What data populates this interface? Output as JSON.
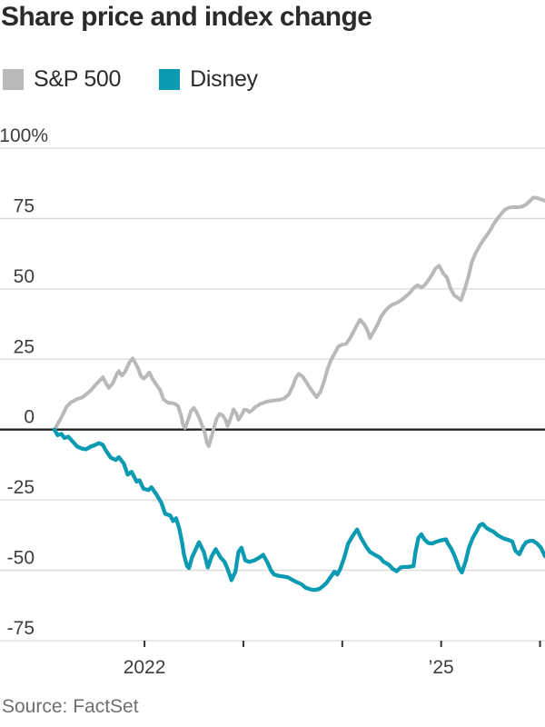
{
  "title": "Share price and index change",
  "source": "Source: FactSet",
  "colors": {
    "zero_line": "#222222",
    "gridline": "#d9d9d9",
    "axis_tick": "#333333",
    "sp500": "#b9b9b9",
    "disney": "#0a9ab1"
  },
  "chart_data": {
    "type": "line",
    "title": "Share price and index change",
    "legend_position": "top-left",
    "grid": true,
    "y_axis": {
      "unit": "%",
      "domain": [
        -75,
        100
      ],
      "ticks": [
        {
          "v": 100,
          "label": "100%"
        },
        {
          "v": 75,
          "label": "75"
        },
        {
          "v": 50,
          "label": "50"
        },
        {
          "v": 25,
          "label": "25"
        },
        {
          "v": 0,
          "label": "0"
        },
        {
          "v": -25,
          "label": "-25"
        },
        {
          "v": -50,
          "label": "-50"
        },
        {
          "v": -75,
          "label": "-75"
        }
      ]
    },
    "x_axis": {
      "unit": "year",
      "domain": [
        2021.09,
        2026.05
      ],
      "ticks": [
        {
          "t": 2022,
          "label": "2022"
        },
        {
          "t": 2023,
          "label": ""
        },
        {
          "t": 2024,
          "label": ""
        },
        {
          "t": 2025,
          "label": "’25"
        },
        {
          "t": 2026,
          "label": ""
        }
      ]
    },
    "series": [
      {
        "name": "S&P 500",
        "color": "#b9b9b9",
        "width": 4,
        "points": [
          [
            2021.09,
            0
          ],
          [
            2021.13,
            2.5
          ],
          [
            2021.17,
            5
          ],
          [
            2021.21,
            8
          ],
          [
            2021.26,
            9.8
          ],
          [
            2021.29,
            10.3
          ],
          [
            2021.32,
            10.9
          ],
          [
            2021.37,
            11.4
          ],
          [
            2021.41,
            12.5
          ],
          [
            2021.46,
            14
          ],
          [
            2021.5,
            15.7
          ],
          [
            2021.55,
            17.5
          ],
          [
            2021.58,
            18.6
          ],
          [
            2021.61,
            16.5
          ],
          [
            2021.64,
            14.8
          ],
          [
            2021.68,
            16.5
          ],
          [
            2021.72,
            19.7
          ],
          [
            2021.74,
            20.8
          ],
          [
            2021.77,
            19.2
          ],
          [
            2021.8,
            20.3
          ],
          [
            2021.83,
            22.5
          ],
          [
            2021.85,
            24
          ],
          [
            2021.88,
            25.3
          ],
          [
            2021.91,
            23.5
          ],
          [
            2021.94,
            21.4
          ],
          [
            2021.96,
            19.2
          ],
          [
            2021.99,
            18.1
          ],
          [
            2022.02,
            19
          ],
          [
            2022.05,
            20.3
          ],
          [
            2022.08,
            18
          ],
          [
            2022.12,
            16
          ],
          [
            2022.16,
            14
          ],
          [
            2022.19,
            10.8
          ],
          [
            2022.24,
            9.5
          ],
          [
            2022.28,
            9.4
          ],
          [
            2022.31,
            9.1
          ],
          [
            2022.34,
            8.3
          ],
          [
            2022.37,
            5
          ],
          [
            2022.39,
            1.7
          ],
          [
            2022.41,
            0.6
          ],
          [
            2022.44,
            3.3
          ],
          [
            2022.47,
            6.6
          ],
          [
            2022.5,
            7.7
          ],
          [
            2022.52,
            6.6
          ],
          [
            2022.55,
            4.4
          ],
          [
            2022.58,
            1.7
          ],
          [
            2022.61,
            -1.1
          ],
          [
            2022.63,
            -4.5
          ],
          [
            2022.65,
            -5.9
          ],
          [
            2022.68,
            -2.2
          ],
          [
            2022.71,
            1.7
          ],
          [
            2022.73,
            3.9
          ],
          [
            2022.76,
            5.6
          ],
          [
            2022.79,
            5.1
          ],
          [
            2022.82,
            3.5
          ],
          [
            2022.84,
            1.3
          ],
          [
            2022.87,
            3.9
          ],
          [
            2022.9,
            7.2
          ],
          [
            2022.93,
            5.6
          ],
          [
            2022.95,
            3.5
          ],
          [
            2022.98,
            5.1
          ],
          [
            2023.01,
            7.1
          ],
          [
            2023.04,
            6.9
          ],
          [
            2023.06,
            6.2
          ],
          [
            2023.09,
            6.9
          ],
          [
            2023.12,
            8
          ],
          [
            2023.15,
            8.6
          ],
          [
            2023.17,
            9.1
          ],
          [
            2023.2,
            9.4
          ],
          [
            2023.23,
            9.9
          ],
          [
            2023.28,
            10.2
          ],
          [
            2023.32,
            10.4
          ],
          [
            2023.37,
            10.6
          ],
          [
            2023.41,
            11
          ],
          [
            2023.46,
            12.5
          ],
          [
            2023.5,
            15.5
          ],
          [
            2023.53,
            18.3
          ],
          [
            2023.56,
            19.8
          ],
          [
            2023.6,
            18.8
          ],
          [
            2023.63,
            17.2
          ],
          [
            2023.67,
            15
          ],
          [
            2023.71,
            13
          ],
          [
            2023.74,
            11.5
          ],
          [
            2023.78,
            13.5
          ],
          [
            2023.82,
            17.5
          ],
          [
            2023.85,
            21.5
          ],
          [
            2023.89,
            25
          ],
          [
            2023.93,
            27.5
          ],
          [
            2023.96,
            29.5
          ],
          [
            2024.0,
            30.2
          ],
          [
            2024.04,
            30.5
          ],
          [
            2024.07,
            32
          ],
          [
            2024.11,
            34.5
          ],
          [
            2024.15,
            37.2
          ],
          [
            2024.18,
            39
          ],
          [
            2024.22,
            37.5
          ],
          [
            2024.26,
            34.8
          ],
          [
            2024.28,
            32.5
          ],
          [
            2024.32,
            35
          ],
          [
            2024.36,
            37.5
          ],
          [
            2024.39,
            40
          ],
          [
            2024.43,
            42
          ],
          [
            2024.47,
            43.5
          ],
          [
            2024.5,
            44.3
          ],
          [
            2024.55,
            45
          ],
          [
            2024.6,
            46
          ],
          [
            2024.64,
            47.2
          ],
          [
            2024.69,
            48.8
          ],
          [
            2024.72,
            50.2
          ],
          [
            2024.76,
            51.3
          ],
          [
            2024.8,
            50.5
          ],
          [
            2024.83,
            51.2
          ],
          [
            2024.87,
            53
          ],
          [
            2024.91,
            55.2
          ],
          [
            2024.94,
            57.2
          ],
          [
            2024.98,
            58.2
          ],
          [
            2025.02,
            55.5
          ],
          [
            2025.06,
            54
          ],
          [
            2025.09,
            50.5
          ],
          [
            2025.13,
            47.8
          ],
          [
            2025.17,
            46.8
          ],
          [
            2025.2,
            46
          ],
          [
            2025.24,
            50
          ],
          [
            2025.28,
            55
          ],
          [
            2025.31,
            59.5
          ],
          [
            2025.35,
            62.8
          ],
          [
            2025.39,
            65.3
          ],
          [
            2025.42,
            67
          ],
          [
            2025.46,
            69
          ],
          [
            2025.5,
            71
          ],
          [
            2025.53,
            73
          ],
          [
            2025.57,
            75
          ],
          [
            2025.61,
            76.8
          ],
          [
            2025.64,
            78
          ],
          [
            2025.68,
            78.8
          ],
          [
            2025.72,
            79
          ],
          [
            2025.77,
            79
          ],
          [
            2025.82,
            79.2
          ],
          [
            2025.86,
            80
          ],
          [
            2025.9,
            81.3
          ],
          [
            2025.93,
            82.4
          ],
          [
            2025.97,
            82.3
          ],
          [
            2026.01,
            81.8
          ],
          [
            2026.05,
            81.3
          ]
        ]
      },
      {
        "name": "Disney",
        "color": "#0a9ab1",
        "width": 4.3,
        "points": [
          [
            2021.09,
            0
          ],
          [
            2021.12,
            -2
          ],
          [
            2021.16,
            -1.5
          ],
          [
            2021.19,
            -3
          ],
          [
            2021.23,
            -2.5
          ],
          [
            2021.28,
            -4.5
          ],
          [
            2021.32,
            -6
          ],
          [
            2021.37,
            -6.8
          ],
          [
            2021.41,
            -7
          ],
          [
            2021.46,
            -6
          ],
          [
            2021.5,
            -5.5
          ],
          [
            2021.54,
            -4.8
          ],
          [
            2021.58,
            -5.5
          ],
          [
            2021.61,
            -7.5
          ],
          [
            2021.66,
            -10
          ],
          [
            2021.71,
            -10.8
          ],
          [
            2021.74,
            -9.8
          ],
          [
            2021.79,
            -12
          ],
          [
            2021.83,
            -16
          ],
          [
            2021.87,
            -15
          ],
          [
            2021.92,
            -18.5
          ],
          [
            2021.95,
            -18
          ],
          [
            2021.99,
            -21
          ],
          [
            2022.04,
            -21.5
          ],
          [
            2022.07,
            -20.5
          ],
          [
            2022.12,
            -23
          ],
          [
            2022.17,
            -26
          ],
          [
            2022.21,
            -30
          ],
          [
            2022.26,
            -30.5
          ],
          [
            2022.29,
            -32.5
          ],
          [
            2022.32,
            -31.5
          ],
          [
            2022.35,
            -35
          ],
          [
            2022.38,
            -40
          ],
          [
            2022.4,
            -44.5
          ],
          [
            2022.43,
            -48.5
          ],
          [
            2022.45,
            -49.2
          ],
          [
            2022.48,
            -45.5
          ],
          [
            2022.51,
            -43.2
          ],
          [
            2022.55,
            -40
          ],
          [
            2022.6,
            -43.5
          ],
          [
            2022.64,
            -49
          ],
          [
            2022.68,
            -45
          ],
          [
            2022.72,
            -42.5
          ],
          [
            2022.77,
            -45.5
          ],
          [
            2022.81,
            -47
          ],
          [
            2022.84,
            -49.5
          ],
          [
            2022.88,
            -53.5
          ],
          [
            2022.92,
            -50.5
          ],
          [
            2022.95,
            -43.5
          ],
          [
            2022.98,
            -42
          ],
          [
            2023.02,
            -46.5
          ],
          [
            2023.06,
            -47
          ],
          [
            2023.11,
            -46.5
          ],
          [
            2023.16,
            -45.5
          ],
          [
            2023.2,
            -44.5
          ],
          [
            2023.24,
            -47
          ],
          [
            2023.28,
            -50
          ],
          [
            2023.31,
            -51.5
          ],
          [
            2023.36,
            -52
          ],
          [
            2023.4,
            -52.2
          ],
          [
            2023.45,
            -52.5
          ],
          [
            2023.5,
            -53.5
          ],
          [
            2023.54,
            -54.2
          ],
          [
            2023.59,
            -55
          ],
          [
            2023.63,
            -56.2
          ],
          [
            2023.68,
            -56.8
          ],
          [
            2023.72,
            -57
          ],
          [
            2023.77,
            -56.6
          ],
          [
            2023.81,
            -55.5
          ],
          [
            2023.84,
            -54.5
          ],
          [
            2023.88,
            -52.5
          ],
          [
            2023.92,
            -50.5
          ],
          [
            2023.95,
            -51.5
          ],
          [
            2023.98,
            -49.5
          ],
          [
            2024.02,
            -45.5
          ],
          [
            2024.06,
            -40.5
          ],
          [
            2024.11,
            -37.5
          ],
          [
            2024.15,
            -35.5
          ],
          [
            2024.19,
            -38.5
          ],
          [
            2024.24,
            -41.5
          ],
          [
            2024.28,
            -43.5
          ],
          [
            2024.33,
            -44.5
          ],
          [
            2024.38,
            -45.5
          ],
          [
            2024.42,
            -47
          ],
          [
            2024.47,
            -48
          ],
          [
            2024.51,
            -49.5
          ],
          [
            2024.55,
            -50.3
          ],
          [
            2024.59,
            -49
          ],
          [
            2024.62,
            -48.8
          ],
          [
            2024.67,
            -48.8
          ],
          [
            2024.72,
            -48.5
          ],
          [
            2024.74,
            -43.5
          ],
          [
            2024.77,
            -38.5
          ],
          [
            2024.8,
            -37.2
          ],
          [
            2024.83,
            -39
          ],
          [
            2024.87,
            -40.3
          ],
          [
            2024.91,
            -40.5
          ],
          [
            2024.94,
            -40
          ],
          [
            2024.98,
            -39.5
          ],
          [
            2025.02,
            -39.2
          ],
          [
            2025.05,
            -39
          ],
          [
            2025.07,
            -40.6
          ],
          [
            2025.1,
            -42.2
          ],
          [
            2025.13,
            -44.4
          ],
          [
            2025.16,
            -47.1
          ],
          [
            2025.18,
            -49.2
          ],
          [
            2025.21,
            -50.8
          ],
          [
            2025.25,
            -46.5
          ],
          [
            2025.28,
            -42
          ],
          [
            2025.32,
            -38.5
          ],
          [
            2025.36,
            -36
          ],
          [
            2025.39,
            -34
          ],
          [
            2025.42,
            -33.5
          ],
          [
            2025.46,
            -35
          ],
          [
            2025.5,
            -35.8
          ],
          [
            2025.53,
            -36.3
          ],
          [
            2025.57,
            -37.5
          ],
          [
            2025.61,
            -38.3
          ],
          [
            2025.64,
            -38.8
          ],
          [
            2025.68,
            -39.2
          ],
          [
            2025.72,
            -39.8
          ],
          [
            2025.75,
            -43
          ],
          [
            2025.79,
            -44.3
          ],
          [
            2025.83,
            -41.5
          ],
          [
            2025.86,
            -40
          ],
          [
            2025.9,
            -39.5
          ],
          [
            2025.93,
            -39.5
          ],
          [
            2025.97,
            -40.5
          ],
          [
            2026.01,
            -42
          ],
          [
            2026.05,
            -45
          ]
        ]
      }
    ]
  }
}
